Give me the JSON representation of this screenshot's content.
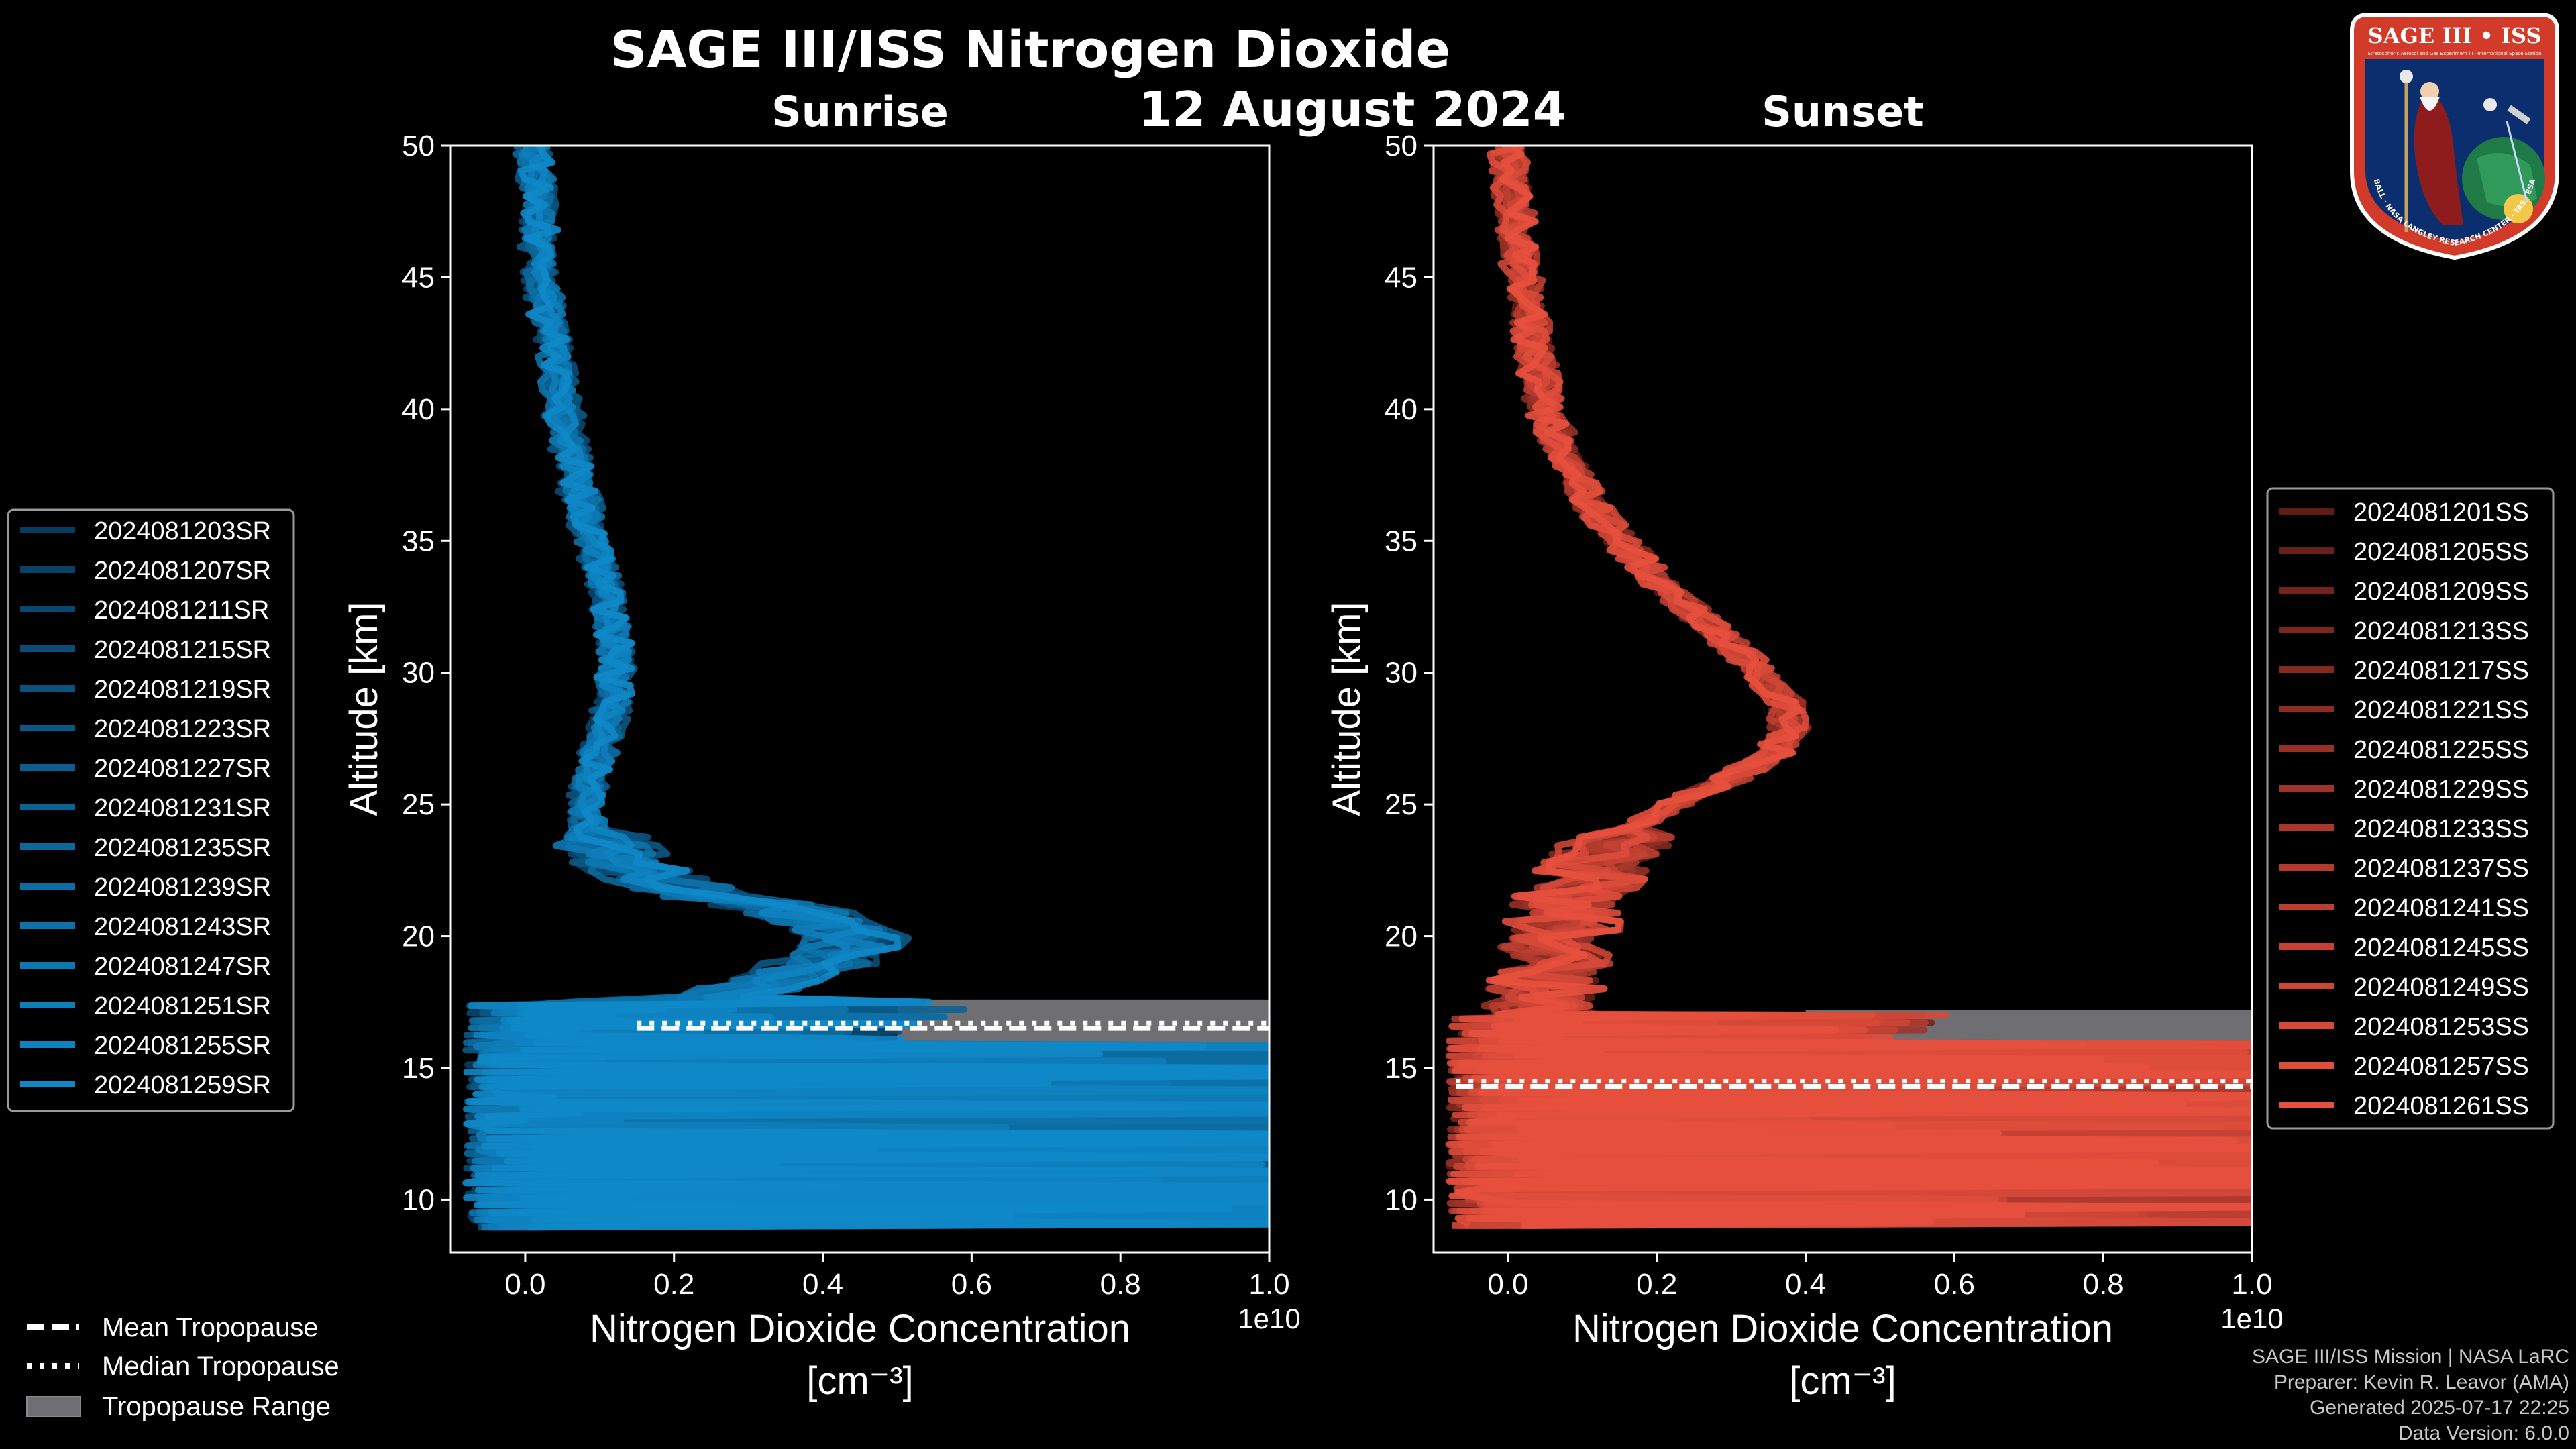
{
  "title": "SAGE III/ISS Nitrogen Dioxide",
  "date": "12 August 2024",
  "colors": {
    "background": "#000000",
    "sunrise": "#0f88c8",
    "sunset": "#e8503e",
    "tropopause_range": "#6e6e73"
  },
  "logo": {
    "text": "SAGE III • ISS",
    "subtitle": "Stratospheric Aerosol and Gas Experiment III · International Space Station",
    "ring_text": "BALL · NASA LANGLEY RESEARCH CENTER · TAS · ESA"
  },
  "chart_data": [
    {
      "type": "line",
      "panel": "sunrise",
      "title": "Sunrise",
      "xlabel_line1": "Nitrogen Dioxide Concentration",
      "xlabel_line2": "[cm⁻³]",
      "x_multiplier": "1e10",
      "ylabel": "Altitude [km]",
      "xlim": [
        -0.1,
        1.0
      ],
      "ylim": [
        8,
        50
      ],
      "xticks": [
        "0.0",
        "0.2",
        "0.4",
        "0.6",
        "0.8",
        "1.0"
      ],
      "yticks": [
        "10",
        "15",
        "20",
        "25",
        "30",
        "35",
        "40",
        "45",
        "50"
      ],
      "tropopause": {
        "mean_km": 16.5,
        "median_km": 16.7,
        "range_km": [
          15.9,
          17.6
        ],
        "range_x_start": 0.5,
        "line_x_start": 0.15
      },
      "legend_position": "left",
      "legend": [
        "2024081203SR",
        "2024081207SR",
        "2024081211SR",
        "2024081215SR",
        "2024081219SR",
        "2024081223SR",
        "2024081227SR",
        "2024081231SR",
        "2024081235SR",
        "2024081239SR",
        "2024081243SR",
        "2024081247SR",
        "2024081251SR",
        "2024081255SR",
        "2024081259SR"
      ],
      "profile": {
        "altitude_km": [
          50,
          47,
          45,
          42,
          40,
          37,
          35,
          33,
          31,
          30,
          29,
          28,
          27,
          26,
          25,
          24,
          23,
          22,
          21.5,
          21,
          20,
          19,
          18,
          17.5
        ],
        "no2_1e10": [
          0.01,
          0.02,
          0.02,
          0.04,
          0.05,
          0.07,
          0.09,
          0.11,
          0.12,
          0.12,
          0.12,
          0.11,
          0.1,
          0.09,
          0.08,
          0.09,
          0.12,
          0.18,
          0.25,
          0.35,
          0.45,
          0.4,
          0.3,
          0.25
        ]
      }
    },
    {
      "type": "line",
      "panel": "sunset",
      "title": "Sunset",
      "xlabel_line1": "Nitrogen Dioxide Concentration",
      "xlabel_line2": "[cm⁻³]",
      "x_multiplier": "1e10",
      "ylabel": "Altitude [km]",
      "xlim": [
        -0.1,
        1.0
      ],
      "ylim": [
        8,
        50
      ],
      "xticks": [
        "0.0",
        "0.2",
        "0.4",
        "0.6",
        "0.8",
        "1.0"
      ],
      "yticks": [
        "10",
        "15",
        "20",
        "25",
        "30",
        "35",
        "40",
        "45",
        "50"
      ],
      "tropopause": {
        "mean_km": 14.3,
        "median_km": 14.5,
        "range_km": [
          11.6,
          17.2
        ],
        "range_x_start": 0.4,
        "line_x_start": -0.07
      },
      "legend_position": "right",
      "legend": [
        "2024081201SS",
        "2024081205SS",
        "2024081209SS",
        "2024081213SS",
        "2024081217SS",
        "2024081221SS",
        "2024081225SS",
        "2024081229SS",
        "2024081233SS",
        "2024081237SS",
        "2024081241SS",
        "2024081245SS",
        "2024081249SS",
        "2024081253SS",
        "2024081257SS",
        "2024081261SS"
      ],
      "profile": {
        "altitude_km": [
          50,
          47,
          45,
          43,
          40,
          38,
          36,
          35,
          33,
          32,
          31,
          30,
          29,
          28,
          27,
          26,
          25,
          24,
          23,
          22,
          21,
          20,
          19,
          18,
          17
        ],
        "no2_1e10": [
          0.0,
          0.01,
          0.02,
          0.03,
          0.05,
          0.08,
          0.12,
          0.15,
          0.22,
          0.26,
          0.3,
          0.34,
          0.37,
          0.38,
          0.36,
          0.3,
          0.22,
          0.17,
          0.13,
          0.1,
          0.08,
          0.07,
          0.06,
          0.05,
          0.05
        ]
      }
    }
  ],
  "tropopause_legend": [
    "Mean Tropopause",
    "Median Tropopause",
    "Tropopause Range"
  ],
  "footer": {
    "mission": "SAGE III/ISS Mission | NASA LaRC",
    "preparer": "Preparer: Kevin R. Leavor (AMA)",
    "generated": "Generated 2025-07-17 22:25",
    "version": "Data Version: 6.0.0"
  }
}
